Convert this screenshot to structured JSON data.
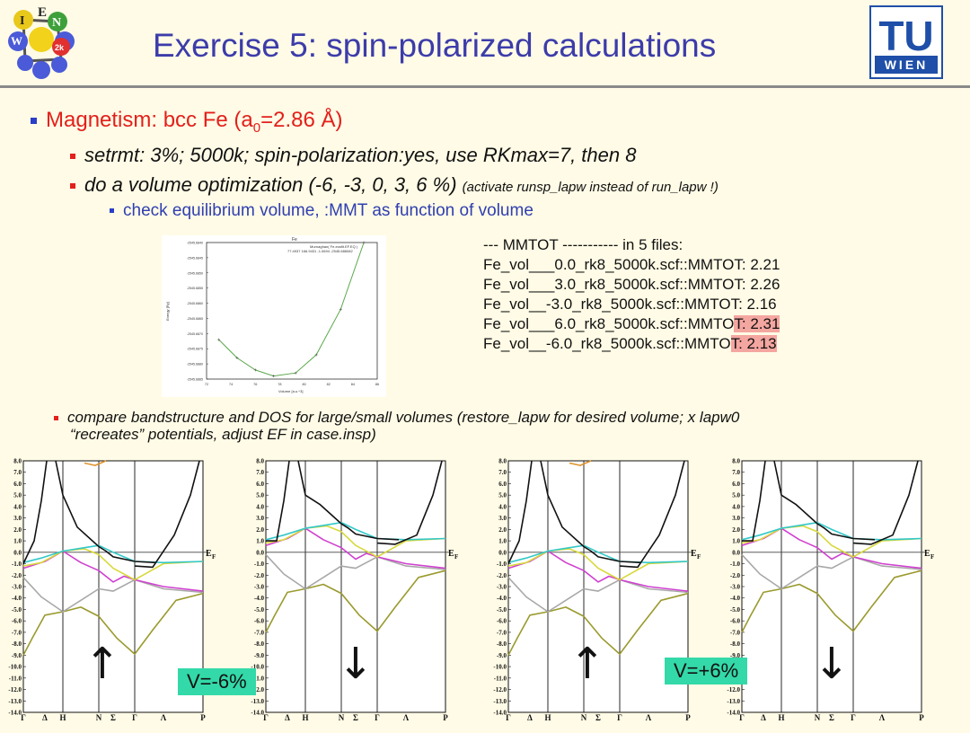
{
  "slide": {
    "title": "Exercise 5: spin-polarized calculations",
    "logo_right_text": [
      "TU",
      "WIEN"
    ],
    "logo_left_letters": [
      "I",
      "E",
      "W",
      "N",
      "2k"
    ]
  },
  "bullets": {
    "magnetism": "Magnetism: bcc Fe (a",
    "magnetism_sub": "0",
    "magnetism_tail": "=2.86 Å)",
    "setrmt": "setrmt: 3%; 5000k; spin-polarization:yes, use RKmax=7, then 8",
    "volopt": "do a volume optimization (-6, -3, 0, 3, 6 %)",
    "volopt_note": "(activate runsp_lapw instead of run_lapw !)",
    "check": "check equilibrium volume, :MMT as function of volume",
    "compare_line1": "compare bandstructure and DOS for large/small volumes (restore_lapw for desired volume; x lapw0",
    "compare_line2": "“recreates” potentials, adjust EF in case.insp)"
  },
  "mmt_list": {
    "header": "--- MMTOT ----------- in 5 files:",
    "lines": [
      {
        "prefix": "Fe_vol___0.0_rk8_5000k.scf::MMTOT: 2.21",
        "hl": ""
      },
      {
        "prefix": "Fe_vol___3.0_rk8_5000k.scf::MMTOT: 2.26",
        "hl": ""
      },
      {
        "prefix": "Fe_vol__-3.0_rk8_5000k.scf::MMTOT: 2.16",
        "hl": ""
      },
      {
        "prefix": "Fe_vol___6.0_rk8_5000k.scf::MMTO",
        "hl": "T: 2.31"
      },
      {
        "prefix": "Fe_vol__-6.0_rk8_5000k.scf::MMTO",
        "hl": "T: 2.13"
      }
    ]
  },
  "energy_plot": {
    "title": "Fe",
    "legend": "Murnaghan( Fe.eosfit.EF.EQ )",
    "params": "77.4937 166.9431 -1.0694 -2545.686082",
    "ylabel": "Energy [Ry]",
    "xlabel": "Volume [a.u.^3]",
    "yticks": [
      "-2545.6840",
      "-2545.6845",
      "-2545.6850",
      "-2545.6855",
      "-2545.6860",
      "-2545.6865",
      "-2545.6870",
      "-2545.6875",
      "-2545.6880",
      "-2545.6885"
    ],
    "xticks": [
      "72",
      "74",
      "76",
      "78",
      "80",
      "82",
      "84",
      "86"
    ],
    "chart_data": {
      "type": "line",
      "x": [
        73,
        74.5,
        76.0,
        77.5,
        79.3,
        81.0,
        83.0,
        84.9
      ],
      "y": [
        -2545.6872,
        -2545.6878,
        -2545.6882,
        -2545.6884,
        -2545.6883,
        -2545.6877,
        -2545.6862,
        -2545.684
      ],
      "xlim": [
        72,
        86
      ],
      "ylim": [
        -2545.6885,
        -2545.684
      ]
    }
  },
  "bandplots": {
    "yticks": [
      "8.0",
      "7.0",
      "6.0",
      "5.0",
      "4.0",
      "3.0",
      "2.0",
      "1.0",
      "0.0",
      "-1.0",
      "-2.0",
      "-3.0",
      "-4.0",
      "-5.0",
      "-6.0",
      "-7.0",
      "-8.0",
      "-9.0",
      "-10.0",
      "-11.0",
      "-12.0",
      "-13.0",
      "-14.0"
    ],
    "kpoints": [
      "Γ",
      "Δ",
      "H",
      "N",
      "Σ",
      "Γ",
      "Λ",
      "P"
    ],
    "ef_label": "E",
    "ef_sub": "F",
    "up_arrow": "↑",
    "down_arrow": "↓",
    "label_minus": "V=-6%",
    "label_plus": "V=+6%",
    "colors": {
      "black": "#111111",
      "cyan": "#33c8c8",
      "yellow": "#d8d83a",
      "magenta": "#d040d0",
      "gray": "#a8a8a8",
      "olive": "#9a9a2e",
      "orange": "#e0942e"
    }
  }
}
